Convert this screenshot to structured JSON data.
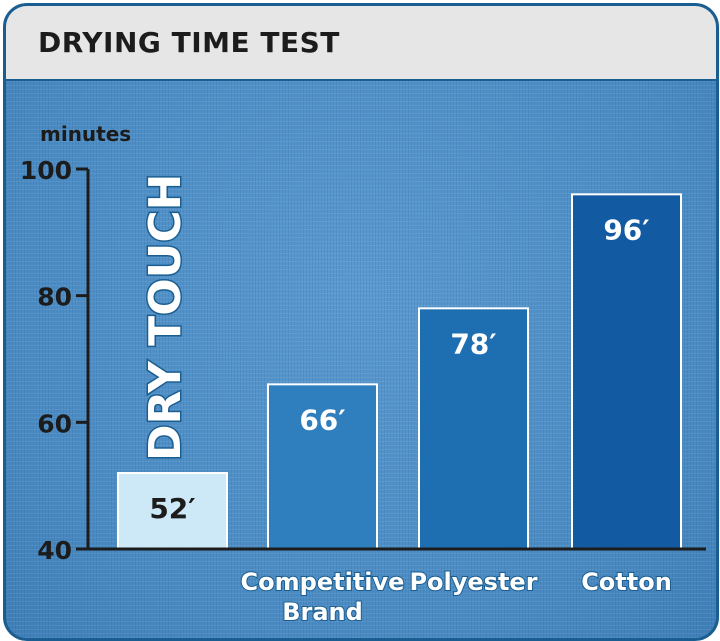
{
  "header": {
    "title": "DRYING TIME TEST"
  },
  "brand_label": "DRY TOUCH",
  "colors": {
    "background": "#4c8fc6",
    "frame": "#1a5e91",
    "header_bg": "#e6e6e6",
    "bar_fill": [
      "#cde8f6",
      "#2f7fbf",
      "#1e6eb2",
      "#125aa2"
    ]
  },
  "chart_data": {
    "type": "bar",
    "title": "DRYING TIME TEST",
    "ylabel": "minutes",
    "xlabel": "",
    "ylim": [
      40,
      100
    ],
    "yticks": [
      40,
      60,
      80,
      100
    ],
    "categories": [
      "",
      "Competitive Brand",
      "Polyester",
      "Cotton"
    ],
    "values": [
      52,
      66,
      78,
      96
    ],
    "data_labels": [
      "52′",
      "66′",
      "78′",
      "96′"
    ],
    "grid": false,
    "legend": "none"
  }
}
